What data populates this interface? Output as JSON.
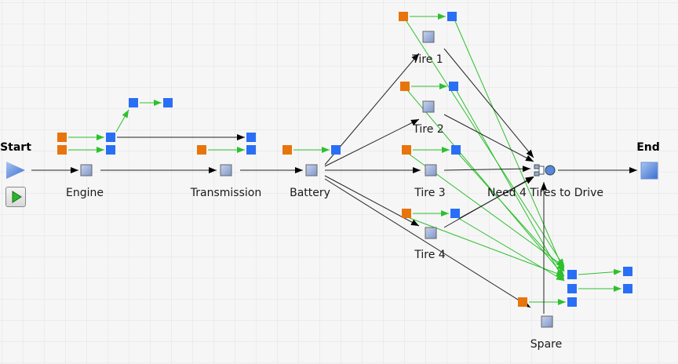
{
  "start_label": "Start",
  "end_label": "End",
  "nodes": {
    "engine": "Engine",
    "transmission": "Transmission",
    "battery": "Battery",
    "tire1": "Tire 1",
    "tire2": "Tire 2",
    "tire3": "Tire 3",
    "tire4": "Tire 4",
    "need4": "Need 4 Tires to Drive",
    "spare": "Spare"
  },
  "colors": {
    "resource_orange": "#e8740c",
    "resource_blue": "#2a6ef5",
    "flow_arrow": "#000000",
    "resource_link": "#2ec02e",
    "node_gray": "#8fa3cf"
  },
  "icons": {
    "start": "play-triangle-icon",
    "run": "run-button-icon",
    "end": "end-square-icon",
    "gate": "gate-icon"
  }
}
